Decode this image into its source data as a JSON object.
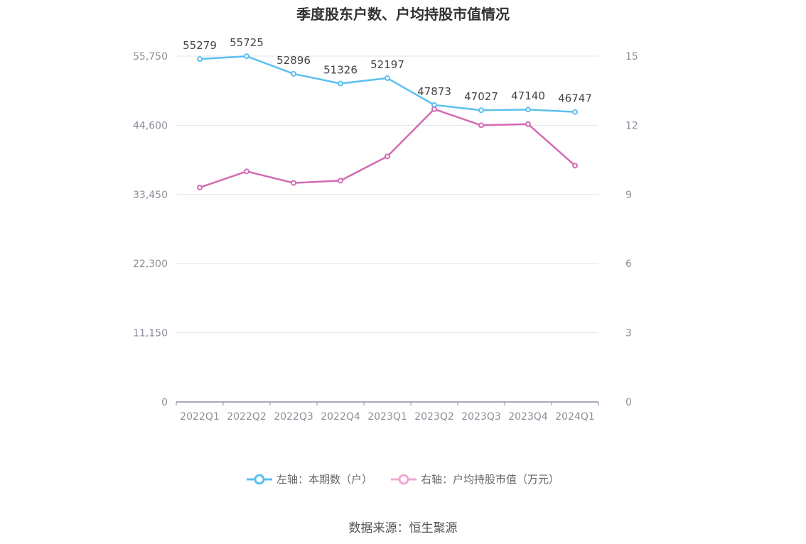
{
  "chart_data": {
    "type": "line",
    "title": "季度股东户数、户均持股市值情况",
    "categories": [
      "2022Q1",
      "2022Q2",
      "2022Q3",
      "2022Q4",
      "2023Q1",
      "2023Q2",
      "2023Q3",
      "2023Q4",
      "2024Q1"
    ],
    "left_axis": {
      "ticks": [
        "0",
        "11,150",
        "22,300",
        "33,450",
        "44,600",
        "55,750"
      ],
      "ylim": [
        0,
        55750
      ]
    },
    "right_axis": {
      "ticks": [
        "0",
        "3",
        "6",
        "9",
        "12",
        "15"
      ],
      "ylim": [
        0,
        15
      ]
    },
    "grid": true,
    "legend_position": "bottom",
    "series": [
      {
        "name": "左轴：本期数（户）",
        "axis": "left",
        "color": "#5bc0f0",
        "values": [
          55279,
          55725,
          52896,
          51326,
          52197,
          47873,
          47027,
          47140,
          46747
        ],
        "labels": [
          "55279",
          "55725",
          "52896",
          "51326",
          "52197",
          "47873",
          "47027",
          "47140",
          "46747"
        ]
      },
      {
        "name": "右轴：户均持股市值（万元）",
        "axis": "right",
        "color": "#d46bb3",
        "legend_color": "#f0a8d0",
        "values": [
          9.3,
          10.0,
          9.5,
          9.6,
          10.65,
          12.7,
          12.0,
          12.05,
          10.25
        ]
      }
    ]
  },
  "source": "数据来源：恒生聚源"
}
